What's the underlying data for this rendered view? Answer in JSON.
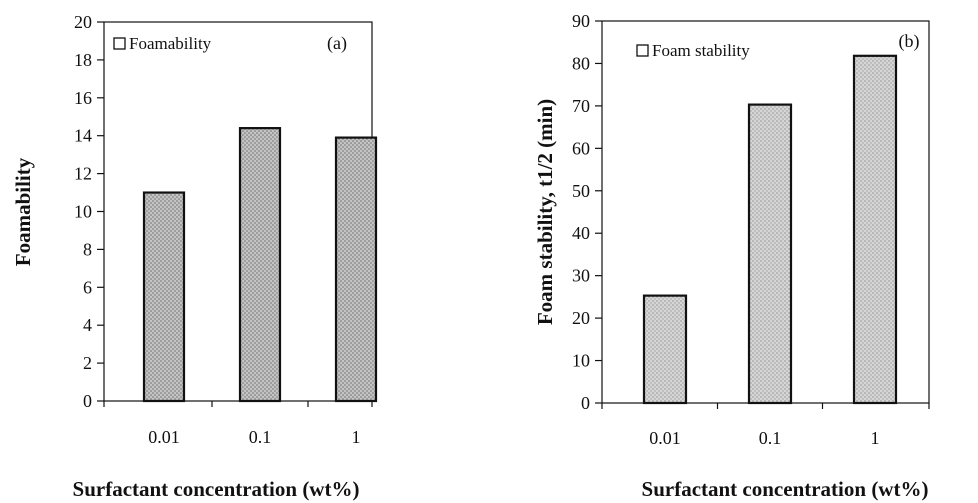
{
  "chart_data": [
    {
      "type": "bar",
      "panel_label": "(a)",
      "categories": [
        "0.01",
        "0.1",
        "1"
      ],
      "series": [
        {
          "name": "Foamability",
          "values": [
            11.0,
            14.4,
            13.9
          ]
        }
      ],
      "xlabel": "Surfactant concentration (wt%)",
      "ylabel": "Foamability",
      "ylim": [
        0,
        20
      ],
      "yticks": [
        "0",
        "2",
        "4",
        "6",
        "8",
        "10",
        "12",
        "14",
        "16",
        "18",
        "20"
      ],
      "grid": false,
      "legend_position": "top-left",
      "bar_fill": "#bdbdbd",
      "bar_edge": "#111111"
    },
    {
      "type": "bar",
      "panel_label": "(b)",
      "categories": [
        "0.01",
        "0.1",
        "1"
      ],
      "series": [
        {
          "name": "Foam stability",
          "values": [
            25.3,
            70.3,
            81.8
          ]
        }
      ],
      "xlabel": "Surfactant concentration (wt%)",
      "ylabel": "Foam stability, t1/2 (min)",
      "ylim": [
        0,
        90
      ],
      "yticks": [
        "0",
        "10",
        "20",
        "30",
        "40",
        "50",
        "60",
        "70",
        "80",
        "90"
      ],
      "grid": false,
      "legend_position": "top-left",
      "bar_fill": "#cfcfcf",
      "bar_edge": "#111111"
    }
  ]
}
